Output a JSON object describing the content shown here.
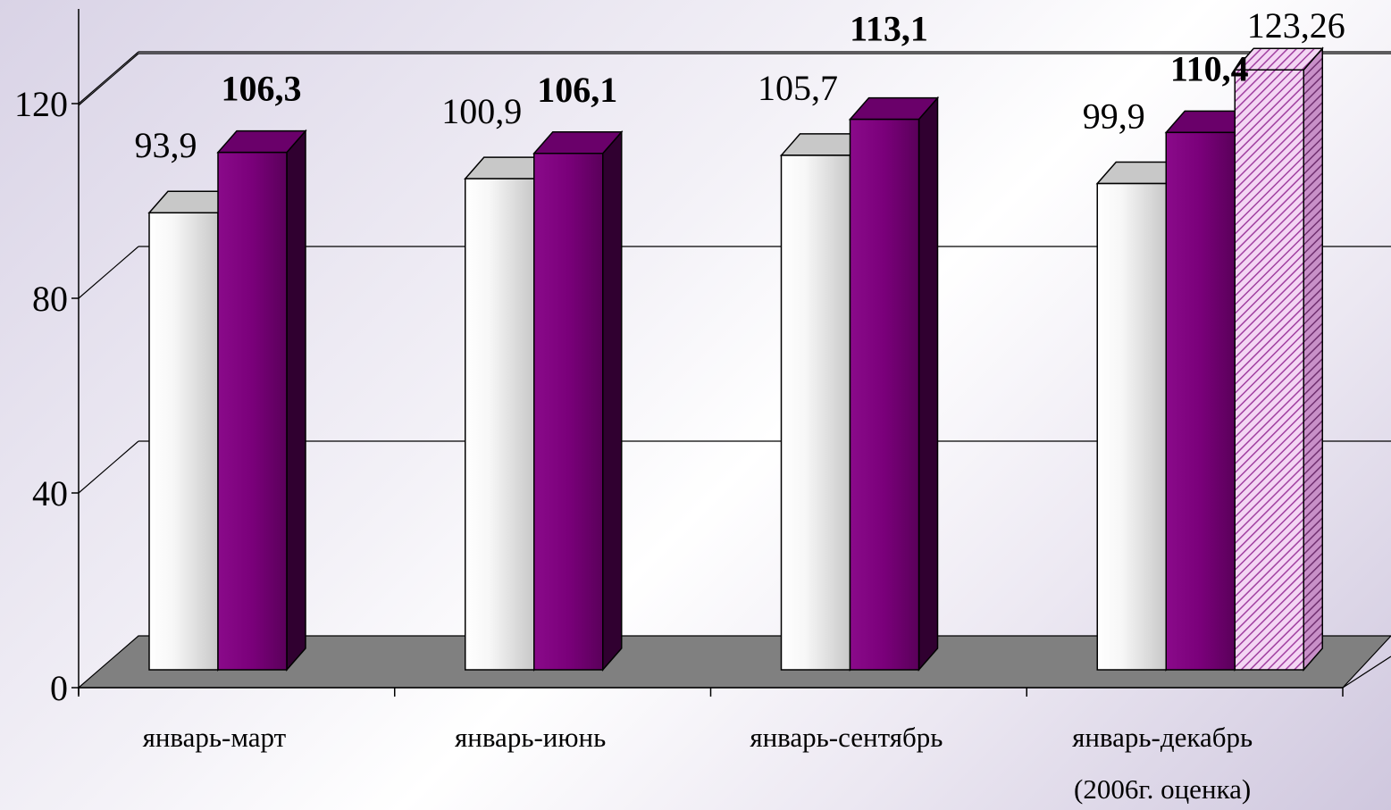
{
  "chart_data": {
    "type": "bar",
    "categories": [
      [
        "январь-март"
      ],
      [
        "январь-июнь"
      ],
      [
        "январь-сентябрь"
      ],
      [
        "январь-декабрь",
        "(2006г. оценка)"
      ]
    ],
    "series": [
      {
        "values": [
          93.9,
          100.9,
          105.7,
          99.9
        ],
        "labels": [
          "93,9",
          "100,9",
          "105,7",
          "99,9"
        ],
        "bold": false,
        "color": "#f2f2f2"
      },
      {
        "values": [
          106.3,
          106.1,
          113.1,
          110.4
        ],
        "labels": [
          "106,3",
          "106,1",
          "113,1",
          "110,4"
        ],
        "bold": true,
        "color": "#800080"
      },
      {
        "values": [
          null,
          null,
          null,
          123.26
        ],
        "labels": [
          null,
          null,
          null,
          "123,26"
        ],
        "bold": false,
        "color": "#e7b6e7",
        "hatched": true
      }
    ],
    "yticks": [
      0,
      40,
      80,
      120
    ],
    "ylim": [
      0,
      130
    ],
    "grid": true,
    "title": "",
    "xlabel": "",
    "ylabel": ""
  },
  "colors": {
    "floor": "#808080",
    "frame": "#000000"
  }
}
